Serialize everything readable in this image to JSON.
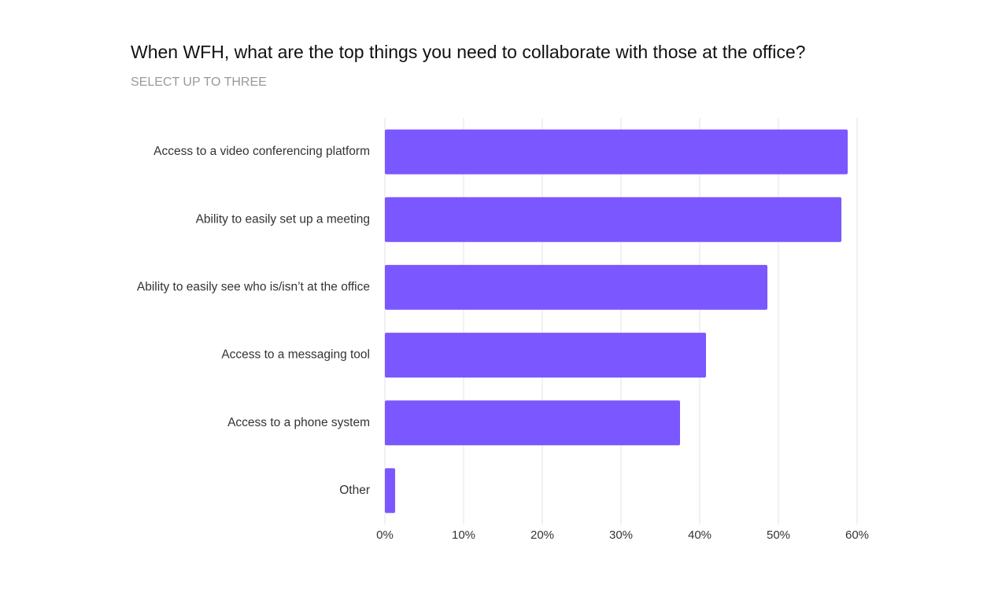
{
  "chart_data": {
    "type": "bar",
    "orientation": "horizontal",
    "title": "When WFH, what are the top things you need to collaborate with those at the office?",
    "subtitle": "SELECT UP TO THREE",
    "categories": [
      "Access to a video conferencing platform",
      "Ability to easily set up a meeting",
      "Ability to easily see who is/isn’t at the office",
      "Access to a messaging tool",
      "Access to a phone system",
      "Other"
    ],
    "values": [
      58.8,
      58.0,
      48.6,
      40.8,
      37.5,
      1.3
    ],
    "color": "#7b57ff",
    "xlim": [
      0,
      60
    ],
    "xticks": [
      {
        "value": 0,
        "label": "0%"
      },
      {
        "value": 10,
        "label": "10%"
      },
      {
        "value": 20,
        "label": "20%"
      },
      {
        "value": 30,
        "label": "30%"
      },
      {
        "value": 40,
        "label": "40%"
      },
      {
        "value": 50,
        "label": "50%"
      },
      {
        "value": 60,
        "label": "60%"
      }
    ],
    "grid": true
  }
}
